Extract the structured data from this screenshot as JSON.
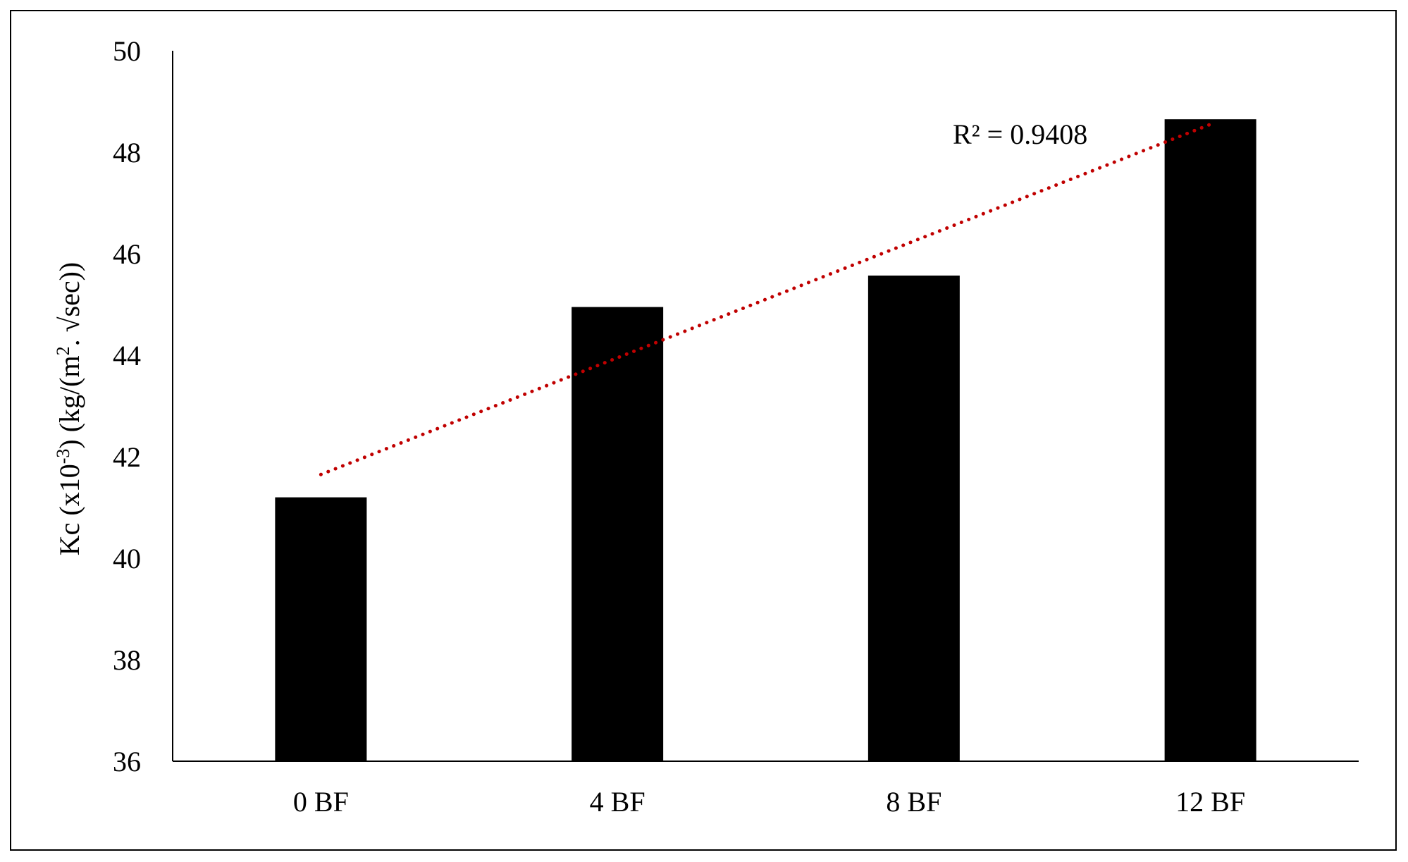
{
  "chart_data": {
    "type": "bar",
    "title": "",
    "xlabel": "",
    "ylabel": {
      "base": "Kc (x10",
      "exponent": "-3",
      "mid": ") (kg/(m",
      "exponent2": "2",
      "end": ". √sec))"
    },
    "categories": [
      "0 BF",
      "4 BF",
      "8 BF",
      "12 BF"
    ],
    "values": [
      41.2,
      44.95,
      45.57,
      48.65
    ],
    "ylim": [
      36,
      50
    ],
    "yticks": [
      36,
      38,
      40,
      42,
      44,
      46,
      48,
      50
    ],
    "bar_color": "#000000",
    "grid": false,
    "legend": "none",
    "trendline": {
      "type": "linear",
      "style": "dotted",
      "color": "#c00000",
      "start": 41.65,
      "end": 48.55,
      "label": "R² = 0.9408"
    }
  }
}
